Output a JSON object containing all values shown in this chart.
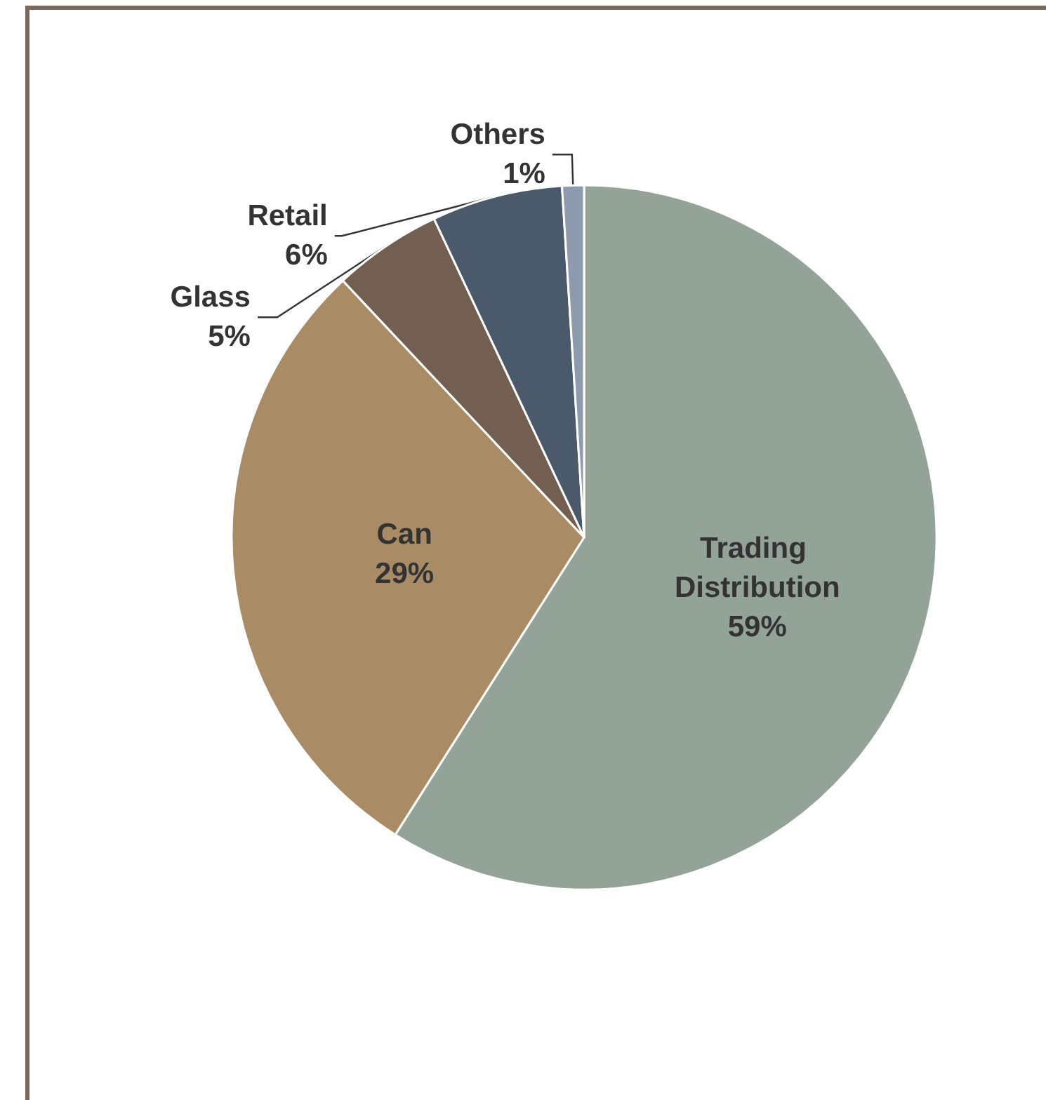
{
  "chart_data": {
    "type": "pie",
    "categories": [
      "Trading Distribution",
      "Can",
      "Glass",
      "Retail",
      "Others"
    ],
    "values": [
      59,
      29,
      5,
      6,
      1
    ],
    "colors": [
      "#93a397",
      "#a98b65",
      "#735f52",
      "#4b5a6a",
      "#8e9aad"
    ],
    "value_labels": [
      "59%",
      "29%",
      "5%",
      "6%",
      "1%"
    ],
    "legend": false
  }
}
